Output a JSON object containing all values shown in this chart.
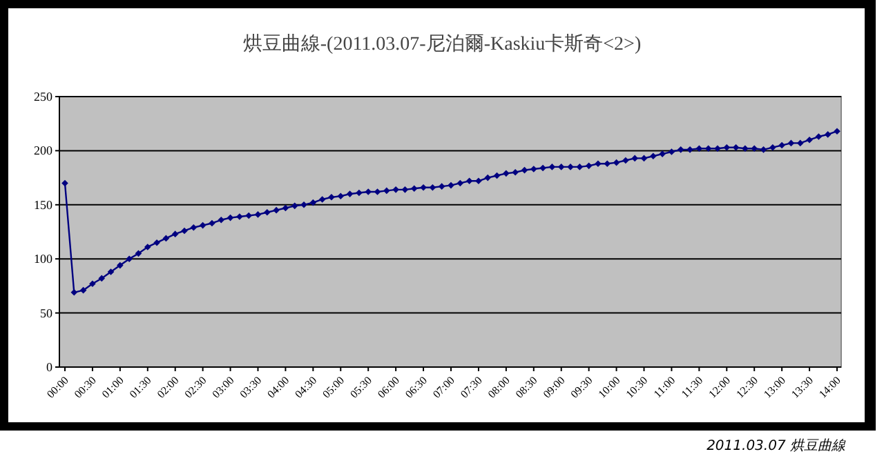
{
  "chart_data": {
    "type": "line",
    "title": "烘豆曲線-(2011.03.07-尼泊爾-Kaskiu卡斯奇<2>)",
    "x": [
      0,
      0.1667,
      0.3333,
      0.5,
      0.6667,
      0.8333,
      1,
      1.1667,
      1.3333,
      1.5,
      1.6667,
      1.8333,
      2,
      2.1667,
      2.3333,
      2.5,
      2.6667,
      2.8333,
      3,
      3.1667,
      3.3333,
      3.5,
      3.6667,
      3.8333,
      4,
      4.1667,
      4.3333,
      4.5,
      4.6667,
      4.8333,
      5,
      5.1667,
      5.3333,
      5.5,
      5.6667,
      5.8333,
      6,
      6.1667,
      6.3333,
      6.5,
      6.6667,
      6.8333,
      7,
      7.1667,
      7.3333,
      7.5,
      7.6667,
      7.8333,
      8,
      8.1667,
      8.3333,
      8.5,
      8.6667,
      8.8333,
      9,
      9.1667,
      9.3333,
      9.5,
      9.6667,
      9.8333,
      10,
      10.1667,
      10.3333,
      10.5,
      10.6667,
      10.8333,
      11,
      11.1667,
      11.3333,
      11.5,
      11.6667,
      11.8333,
      12,
      12.1667,
      12.3333,
      12.5,
      12.6667,
      12.8333,
      13,
      13.1667,
      13.3333,
      13.5,
      13.6667,
      13.8333,
      14
    ],
    "series": [
      {
        "color": "#000080",
        "values": [
          170,
          69,
          71,
          77,
          82,
          88,
          94,
          100,
          105,
          111,
          115,
          119,
          123,
          126,
          129,
          131,
          133,
          136,
          138,
          139,
          140,
          141,
          143,
          145,
          147,
          149,
          150,
          152,
          155,
          157,
          158,
          160,
          161,
          162,
          162,
          163,
          164,
          164,
          165,
          166,
          166,
          167,
          168,
          170,
          172,
          172,
          175,
          177,
          179,
          180,
          182,
          183,
          184,
          185,
          185,
          185,
          185,
          186,
          188,
          188,
          189,
          191,
          193,
          193,
          195,
          197,
          199,
          201,
          201,
          202,
          202,
          202,
          203,
          203,
          202,
          202,
          201,
          203,
          205,
          207,
          207,
          210,
          213,
          215,
          218
        ]
      }
    ],
    "xlim": [
      -0.1,
      14.075
    ],
    "ylim": [
      0,
      250
    ],
    "yticks": [
      0,
      50,
      100,
      150,
      200,
      250
    ],
    "xticks": [
      {
        "value": 0,
        "label": "00:00"
      },
      {
        "value": 0.5,
        "label": "00:30"
      },
      {
        "value": 1,
        "label": "01:00"
      },
      {
        "value": 1.5,
        "label": "01:30"
      },
      {
        "value": 2,
        "label": "02:00"
      },
      {
        "value": 2.5,
        "label": "02:30"
      },
      {
        "value": 3,
        "label": "03:00"
      },
      {
        "value": 3.5,
        "label": "03:30"
      },
      {
        "value": 4,
        "label": "04:00"
      },
      {
        "value": 4.5,
        "label": "04:30"
      },
      {
        "value": 5,
        "label": "05:00"
      },
      {
        "value": 5.5,
        "label": "05:30"
      },
      {
        "value": 6,
        "label": "06:00"
      },
      {
        "value": 6.5,
        "label": "06:30"
      },
      {
        "value": 7,
        "label": "07:00"
      },
      {
        "value": 7.5,
        "label": "07:30"
      },
      {
        "value": 8,
        "label": "08:00"
      },
      {
        "value": 8.5,
        "label": "08:30"
      },
      {
        "value": 9,
        "label": "09:00"
      },
      {
        "value": 9.5,
        "label": "09:30"
      },
      {
        "value": 10,
        "label": "10:00"
      },
      {
        "value": 10.5,
        "label": "10:30"
      },
      {
        "value": 11,
        "label": "11:00"
      },
      {
        "value": 11.5,
        "label": "11:30"
      },
      {
        "value": 12,
        "label": "12:00"
      },
      {
        "value": 12.5,
        "label": "12:30"
      },
      {
        "value": 13,
        "label": "13:00"
      },
      {
        "value": 13.5,
        "label": "13:30"
      },
      {
        "value": 14,
        "label": "14:00"
      }
    ],
    "grid": "y",
    "marker": "diamond",
    "line_style": "solid",
    "annotations": [
      "2011.03.07 烘豆曲線"
    ]
  }
}
